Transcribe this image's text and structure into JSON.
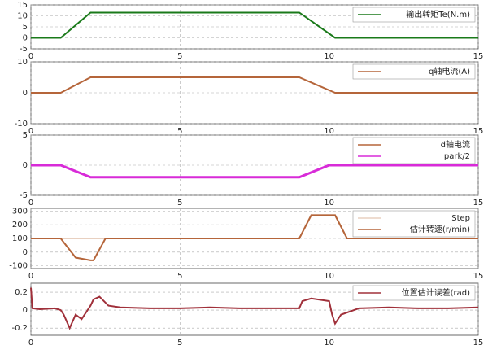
{
  "chart_data": [
    {
      "type": "line",
      "xlim": [
        0,
        15
      ],
      "xticks": [
        0,
        5,
        10,
        15
      ],
      "ylim": [
        -5,
        15
      ],
      "yticks": [
        -5,
        0,
        5,
        10,
        15
      ],
      "grid": true,
      "legend": "top-right",
      "x": [
        0,
        1,
        2,
        9,
        10.2,
        15
      ],
      "series": [
        {
          "name": "输出转矩Te(N.m)",
          "color": "#1a7a1a",
          "values": [
            0,
            0,
            11.5,
            11.5,
            0,
            0
          ]
        }
      ]
    },
    {
      "type": "line",
      "xlim": [
        0,
        15
      ],
      "xticks": [
        0,
        5,
        10,
        15
      ],
      "ylim": [
        -10,
        10
      ],
      "yticks": [
        -10,
        0,
        10
      ],
      "grid": true,
      "legend": "top-right",
      "x": [
        0,
        1,
        2,
        9,
        10.2,
        15
      ],
      "series": [
        {
          "name": "q轴电流(A)",
          "color": "#b5653a",
          "values": [
            0,
            0,
            5,
            5,
            0,
            0
          ]
        }
      ]
    },
    {
      "type": "line",
      "xlim": [
        0,
        15
      ],
      "xticks": [
        0,
        5,
        10,
        15
      ],
      "ylim": [
        -5,
        5
      ],
      "yticks": [
        -5,
        0,
        5
      ],
      "grid": true,
      "legend": "top-right",
      "x": [
        0,
        1,
        2,
        9,
        10,
        15
      ],
      "series": [
        {
          "name": "d轴电流",
          "color": "#b5653a",
          "values": [
            0,
            0,
            -2,
            -2,
            0,
            0
          ]
        },
        {
          "name": "park/2",
          "color": "#d82bd8",
          "values": [
            0,
            0,
            -2,
            -2,
            0,
            0
          ]
        }
      ]
    },
    {
      "type": "line",
      "xlim": [
        0,
        15
      ],
      "xticks": [
        0,
        5,
        10,
        15
      ],
      "ylim": [
        -120,
        320
      ],
      "yticks": [
        -100,
        0,
        100,
        200,
        300
      ],
      "grid": true,
      "legend": "top-right",
      "x": [
        0,
        1,
        1.5,
        2,
        2.1,
        2.5,
        9,
        9.4,
        10.2,
        10.6,
        15
      ],
      "series": [
        {
          "name": "Step",
          "color": "#e8d0c0",
          "values": [
            100,
            100,
            100,
            100,
            100,
            100,
            100,
            270,
            270,
            100,
            100
          ]
        },
        {
          "name": "估计转速(r/min)",
          "color": "#b5653a",
          "values": [
            100,
            100,
            -40,
            -60,
            -60,
            100,
            100,
            270,
            270,
            100,
            100
          ]
        }
      ]
    },
    {
      "type": "line",
      "xlim": [
        0,
        15
      ],
      "xticks": [
        0,
        5,
        10,
        15
      ],
      "ylim": [
        -0.28,
        0.3
      ],
      "yticks": [
        -0.2,
        0,
        0.2
      ],
      "grid": true,
      "legend": "top-right",
      "x": [
        0,
        0.05,
        0.3,
        0.8,
        1,
        1.1,
        1.3,
        1.5,
        1.7,
        2,
        2.1,
        2.3,
        2.6,
        3,
        4,
        5,
        6,
        7,
        8,
        9,
        9.1,
        9.4,
        10,
        10.1,
        10.2,
        10.4,
        11,
        12,
        13,
        14,
        15
      ],
      "series": [
        {
          "name": "位置估计误差(rad)",
          "color": "#a0303a",
          "values": [
            0.25,
            0.02,
            0.01,
            0.02,
            0,
            -0.05,
            -0.2,
            -0.05,
            -0.1,
            0.05,
            0.12,
            0.15,
            0.05,
            0.03,
            0.02,
            0.02,
            0.03,
            0.02,
            0.02,
            0.02,
            0.1,
            0.13,
            0.1,
            -0.05,
            -0.15,
            -0.05,
            0.02,
            0.03,
            0.02,
            0.02,
            0.03
          ]
        }
      ]
    }
  ]
}
